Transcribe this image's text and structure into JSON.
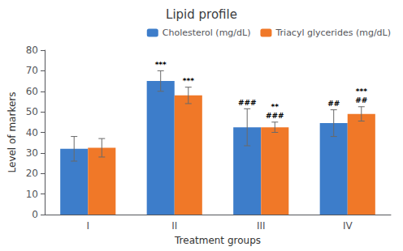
{
  "chart_data": {
    "type": "bar",
    "title": "Lipid profile",
    "x_label": "Treatment groups",
    "y_label": "Level of markers",
    "categories": [
      "I",
      "II",
      "III",
      "IV"
    ],
    "series": [
      {
        "name": "Cholesterol (mg/dL)",
        "color": "#3d7dca",
        "values": [
          32,
          65,
          42.5,
          44.5
        ],
        "errors": [
          6,
          5,
          9,
          6.5
        ],
        "annotations": [
          [],
          [
            "***"
          ],
          [
            "###"
          ],
          [
            "##"
          ]
        ]
      },
      {
        "name": "Triacyl glycerides (mg/dL)",
        "color": "#f07828",
        "values": [
          32.5,
          58,
          42.5,
          49
        ],
        "errors": [
          4.5,
          4,
          2.5,
          3.5
        ],
        "annotations": [
          [],
          [
            "***"
          ],
          [
            "**",
            "###"
          ],
          [
            "***",
            "##"
          ]
        ]
      }
    ],
    "ylim": [
      0,
      80
    ],
    "yticks": [
      0,
      10,
      20,
      30,
      40,
      50,
      60,
      70,
      80
    ],
    "grid": false,
    "legend": "upper right"
  }
}
